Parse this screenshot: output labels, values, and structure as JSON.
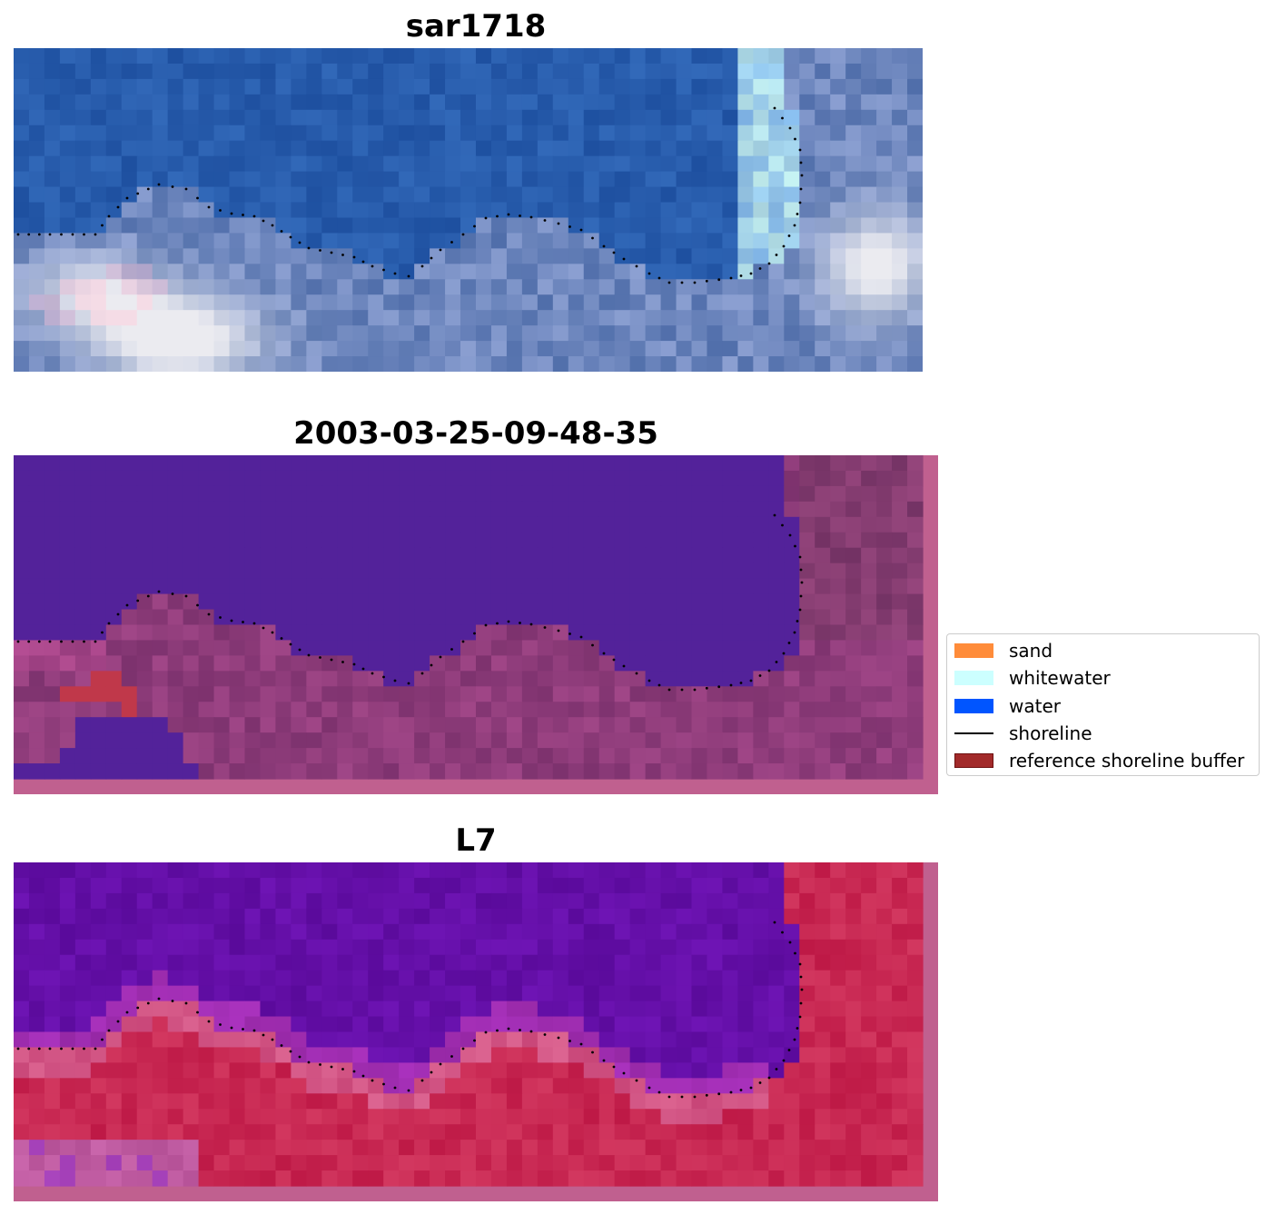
{
  "panels": [
    {
      "title": "sar1718",
      "style": "rgb"
    },
    {
      "title": "2003-03-25-09-48-35",
      "style": "classified"
    },
    {
      "title": "L7",
      "style": "index"
    }
  ],
  "legend": {
    "items": [
      {
        "label": "sand",
        "color": "#ff8c3a"
      },
      {
        "label": "whitewater",
        "color": "#ccffff"
      },
      {
        "label": "water",
        "color": "#0055ff"
      },
      {
        "label": "shoreline",
        "color": "#000000"
      },
      {
        "label": "reference shoreline buffer",
        "color": "#a22a2a"
      }
    ]
  },
  "colors": {
    "water_class": "#53229a",
    "land_class": "#8f3f83",
    "buffer_red": "#c0384a",
    "frame_pink": "#c0608f",
    "index_water": "#5e0ba0",
    "index_land": "#c61846"
  }
}
